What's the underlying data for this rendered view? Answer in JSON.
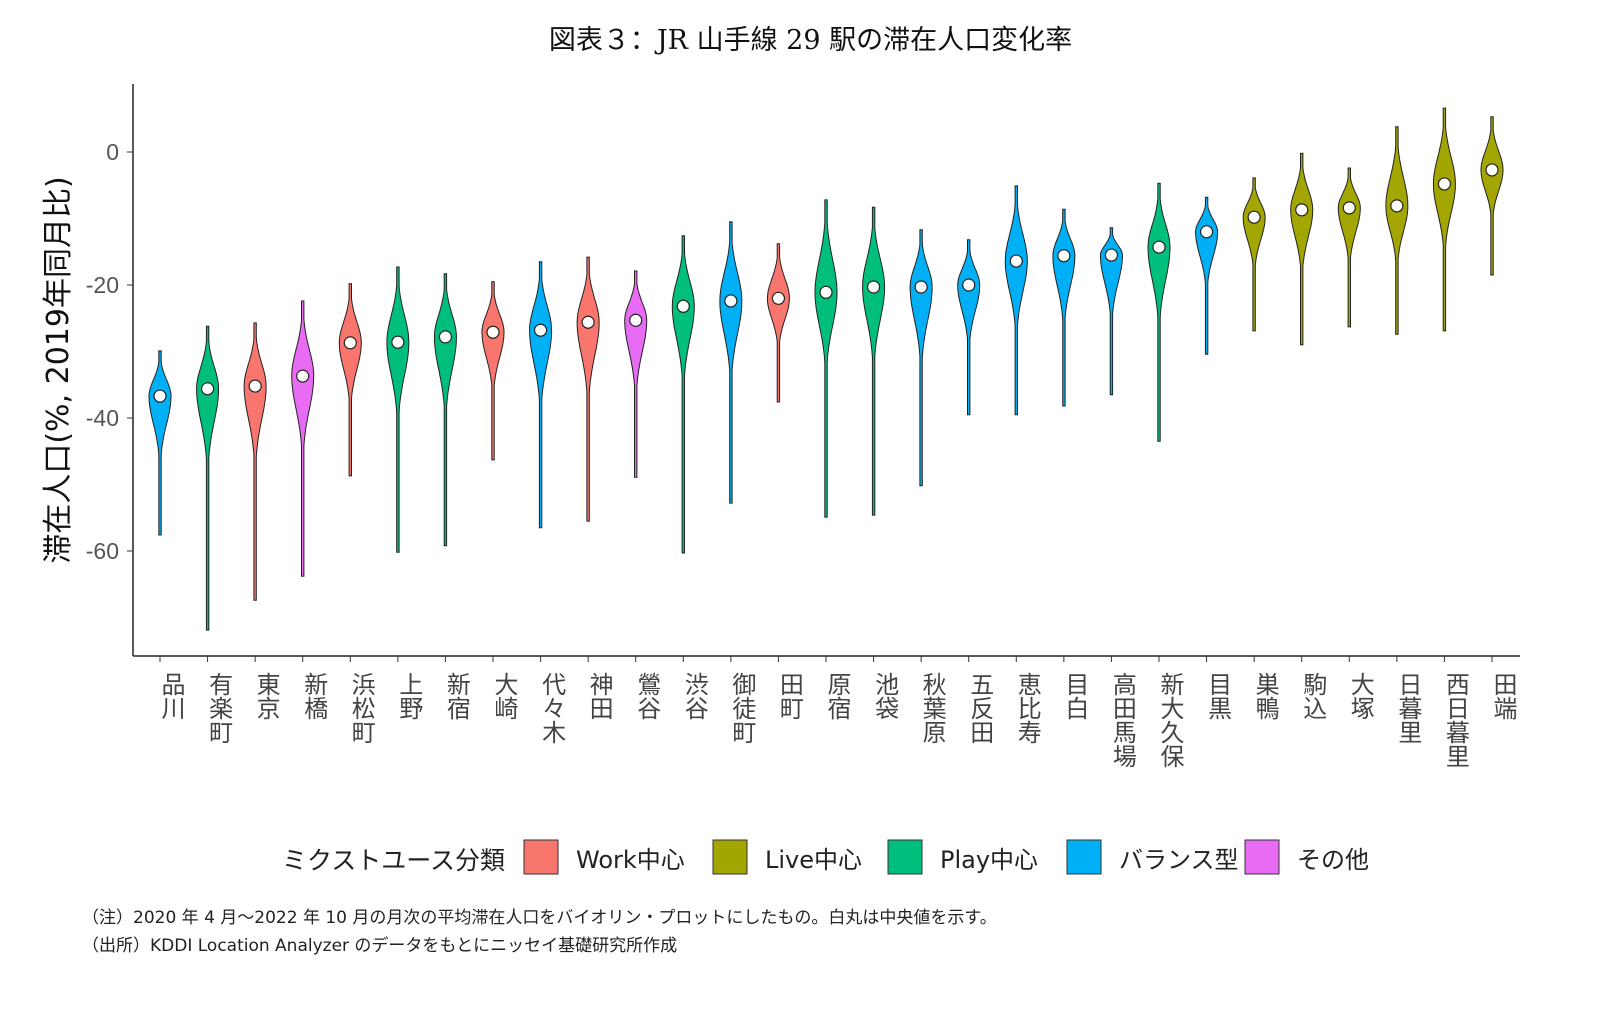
{
  "chart_data": {
    "type": "violin",
    "title": "図表３：JR 山手線 29 駅の滞在人口変化率",
    "xlabel": "",
    "ylabel": "滞在人口(%, 2019年同月比)",
    "ylim": [
      -75,
      10
    ],
    "yticks": [
      0,
      -20,
      -40,
      -60
    ],
    "grid": false,
    "legend": {
      "title": "ミクストユース分類",
      "placement": "bottom",
      "entries": [
        {
          "name": "Work中心",
          "color": "#F8766D"
        },
        {
          "name": "Live中心",
          "color": "#A3A500"
        },
        {
          "name": "Play中心",
          "color": "#00BF7D"
        },
        {
          "name": "バランス型",
          "color": "#00B0F6"
        },
        {
          "name": "その他",
          "color": "#E76BF3"
        }
      ]
    },
    "stations": [
      {
        "name": "品川",
        "group": "バランス型",
        "median": -36.7,
        "min": -57.6,
        "max": -29.9
      },
      {
        "name": "有楽町",
        "group": "Play中心",
        "median": -35.6,
        "min": -71.9,
        "max": -26.2
      },
      {
        "name": "東京",
        "group": "Work中心",
        "median": -35.2,
        "min": -67.4,
        "max": -25.7
      },
      {
        "name": "新橋",
        "group": "その他",
        "median": -33.7,
        "min": -63.8,
        "max": -22.4
      },
      {
        "name": "浜松町",
        "group": "Work中心",
        "median": -28.7,
        "min": -48.7,
        "max": -19.8
      },
      {
        "name": "上野",
        "group": "Play中心",
        "median": -28.6,
        "min": -60.2,
        "max": -17.3
      },
      {
        "name": "新宿",
        "group": "Play中心",
        "median": -27.8,
        "min": -59.2,
        "max": -18.3
      },
      {
        "name": "大崎",
        "group": "Work中心",
        "median": -27.1,
        "min": -46.3,
        "max": -19.5
      },
      {
        "name": "代々木",
        "group": "バランス型",
        "median": -26.8,
        "min": -56.5,
        "max": -16.5
      },
      {
        "name": "神田",
        "group": "Work中心",
        "median": -25.6,
        "min": -55.5,
        "max": -15.8
      },
      {
        "name": "鶯谷",
        "group": "その他",
        "median": -25.3,
        "min": -48.9,
        "max": -17.9
      },
      {
        "name": "渋谷",
        "group": "Play中心",
        "median": -23.2,
        "min": -60.3,
        "max": -12.6
      },
      {
        "name": "御徒町",
        "group": "バランス型",
        "median": -22.4,
        "min": -52.8,
        "max": -10.5
      },
      {
        "name": "田町",
        "group": "Work中心",
        "median": -22.0,
        "min": -37.6,
        "max": -13.8
      },
      {
        "name": "原宿",
        "group": "Play中心",
        "median": -21.1,
        "min": -54.9,
        "max": -7.2
      },
      {
        "name": "池袋",
        "group": "Play中心",
        "median": -20.3,
        "min": -54.6,
        "max": -8.3
      },
      {
        "name": "秋葉原",
        "group": "バランス型",
        "median": -20.3,
        "min": -50.2,
        "max": -11.7
      },
      {
        "name": "五反田",
        "group": "バランス型",
        "median": -20.0,
        "min": -39.5,
        "max": -13.2
      },
      {
        "name": "恵比寿",
        "group": "バランス型",
        "median": -16.4,
        "min": -39.5,
        "max": -5.1
      },
      {
        "name": "目白",
        "group": "バランス型",
        "median": -15.6,
        "min": -38.2,
        "max": -8.6
      },
      {
        "name": "高田馬場",
        "group": "バランス型",
        "median": -15.5,
        "min": -36.5,
        "max": -11.4
      },
      {
        "name": "新大久保",
        "group": "Play中心",
        "median": -14.3,
        "min": -43.5,
        "max": -4.7
      },
      {
        "name": "目黒",
        "group": "バランス型",
        "median": -12.0,
        "min": -30.4,
        "max": -6.8
      },
      {
        "name": "巣鴨",
        "group": "Live中心",
        "median": -9.8,
        "min": -26.9,
        "max": -3.9
      },
      {
        "name": "駒込",
        "group": "Live中心",
        "median": -8.7,
        "min": -29.0,
        "max": -0.2
      },
      {
        "name": "大塚",
        "group": "Live中心",
        "median": -8.4,
        "min": -26.3,
        "max": -2.4
      },
      {
        "name": "日暮里",
        "group": "Live中心",
        "median": -8.1,
        "min": -27.4,
        "max": 3.8
      },
      {
        "name": "西日暮里",
        "group": "Live中心",
        "median": -4.8,
        "min": -26.9,
        "max": 6.6
      },
      {
        "name": "田端",
        "group": "Live中心",
        "median": -2.7,
        "min": -18.5,
        "max": 5.3
      }
    ]
  },
  "notes": {
    "note": "（注）2020 年 4 月～2022 年 10 月の月次の平均滞在人口をバイオリン・プロットにしたもの。白丸は中央値を示す。",
    "source": "（出所）KDDI Location Analyzer のデータをもとにニッセイ基礎研究所作成"
  }
}
